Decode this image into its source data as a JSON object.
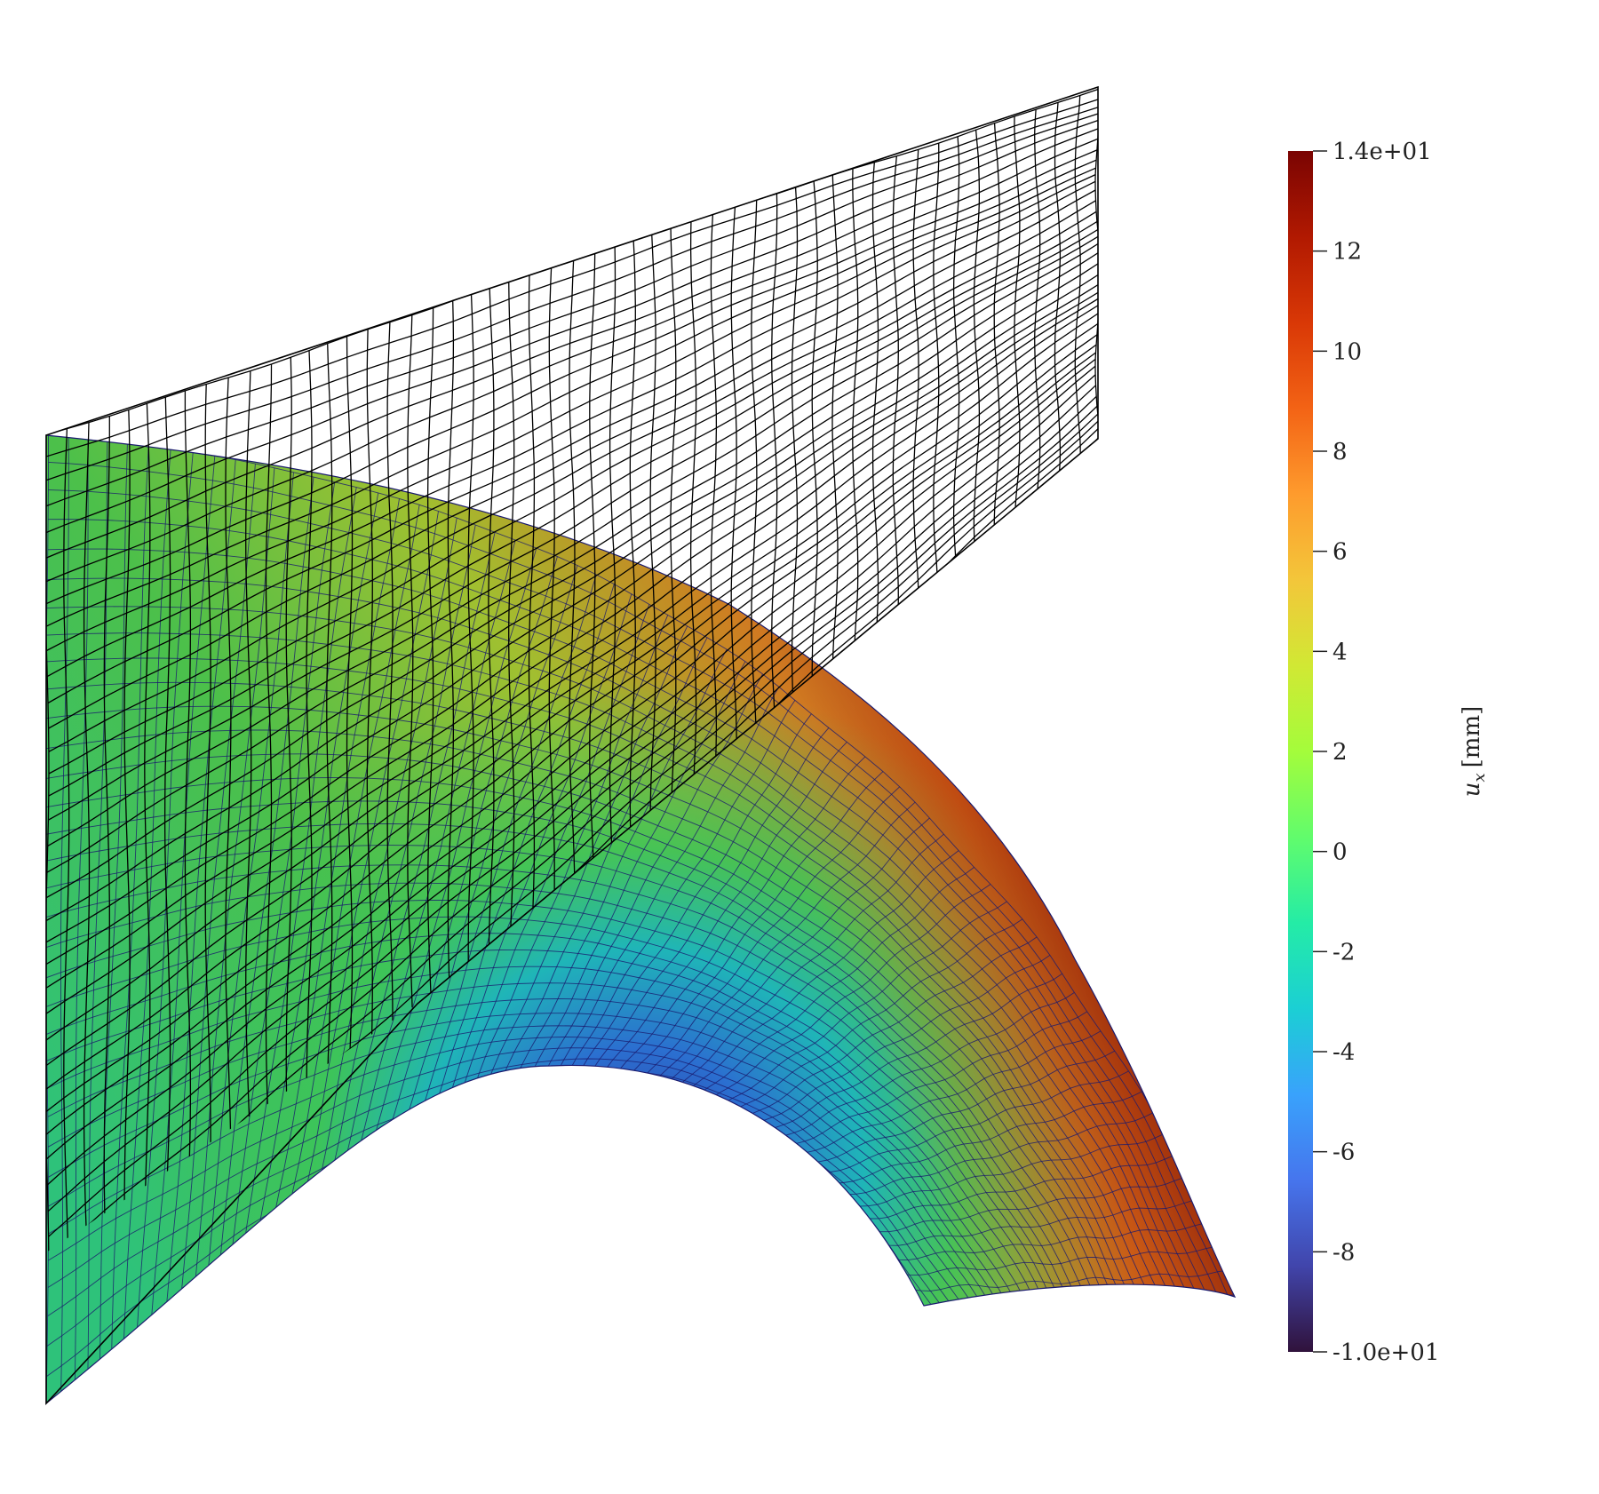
{
  "colorbar": {
    "title_var": "u",
    "title_sub": "x",
    "title_unit": "[mm]",
    "min": -10,
    "max": 14,
    "ticks": [
      {
        "value": 14,
        "label": "1.4e+01"
      },
      {
        "value": 12,
        "label": "12"
      },
      {
        "value": 10,
        "label": "10"
      },
      {
        "value": 8,
        "label": "8"
      },
      {
        "value": 6,
        "label": "6"
      },
      {
        "value": 4,
        "label": "4"
      },
      {
        "value": 2,
        "label": "2"
      },
      {
        "value": 0,
        "label": "0"
      },
      {
        "value": -2,
        "label": "-2"
      },
      {
        "value": -4,
        "label": "-4"
      },
      {
        "value": -6,
        "label": "-6"
      },
      {
        "value": -8,
        "label": "-8"
      },
      {
        "value": -10,
        "label": "-1.0e+01"
      }
    ],
    "colormap": [
      "#30123b",
      "#4145ab",
      "#4675ed",
      "#39a2fc",
      "#1bcfd4",
      "#24eca6",
      "#61fc6c",
      "#a4fc3b",
      "#d1e834",
      "#f3c63a",
      "#fe9b2d",
      "#f36315",
      "#d93806",
      "#b11901",
      "#7a0402"
    ]
  },
  "mesh": {
    "undeformed_line_color": "#000000",
    "deformed_line_color": "#1a1a6e"
  }
}
